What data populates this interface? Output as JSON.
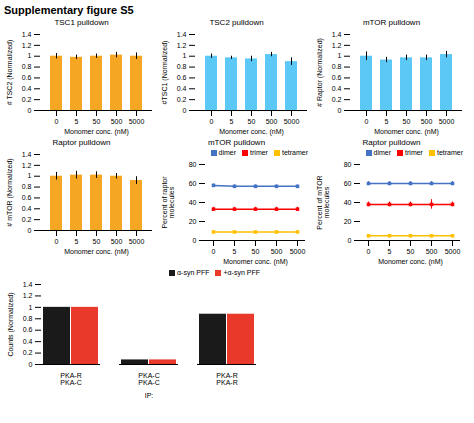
{
  "title": "Supplementary figure S5",
  "chart_data": [
    {
      "type": "bar",
      "title": "TSC1 pulldown",
      "xlabel": "Monomer conc. (nM)",
      "ylabel": "# TSC2 (Normalized)",
      "categories": [
        "0",
        "5",
        "50",
        "500",
        "5000"
      ],
      "values": [
        1.0,
        0.98,
        1.0,
        1.02,
        1.0
      ],
      "errors": [
        0.05,
        0.04,
        0.04,
        0.05,
        0.06
      ],
      "color": "#F5A623",
      "ylim": [
        0,
        1.4
      ],
      "yticks": [
        0,
        0.2,
        0.4,
        0.6,
        0.8,
        1,
        1.2,
        1.4
      ],
      "grid": false
    },
    {
      "type": "bar",
      "title": "TSC2 pulldown",
      "xlabel": "Monomer conc. (nM)",
      "ylabel": "#TSC1 (Normalized)",
      "categories": [
        "0",
        "5",
        "50",
        "500",
        "5000"
      ],
      "values": [
        1.0,
        0.97,
        0.95,
        1.03,
        0.9
      ],
      "errors": [
        0.04,
        0.03,
        0.05,
        0.04,
        0.07
      ],
      "color": "#5BC8F5",
      "ylim": [
        0,
        1.4
      ],
      "yticks": [
        0,
        0.2,
        0.4,
        0.6,
        0.8,
        1,
        1.2,
        1.4
      ],
      "grid": false
    },
    {
      "type": "bar",
      "title": "mTOR pulldown",
      "xlabel": "Monomer conc. (nM)",
      "ylabel": "# Raptor (Normalized)",
      "categories": [
        "0",
        "5",
        "50",
        "500",
        "5000"
      ],
      "values": [
        1.0,
        0.93,
        0.97,
        0.97,
        1.03
      ],
      "errors": [
        0.08,
        0.05,
        0.05,
        0.05,
        0.06
      ],
      "color": "#5BC8F5",
      "ylim": [
        0,
        1.4
      ],
      "yticks": [
        0,
        0.2,
        0.4,
        0.6,
        0.8,
        1,
        1.2,
        1.4
      ],
      "grid": false
    },
    {
      "type": "bar",
      "title": "Raptor pulldown",
      "xlabel": "Monomer conc. (nM)",
      "ylabel": "# mTOR (Normalized)",
      "categories": [
        "0",
        "5",
        "50",
        "500",
        "5000"
      ],
      "values": [
        1.0,
        1.02,
        1.02,
        1.0,
        0.92
      ],
      "errors": [
        0.07,
        0.07,
        0.06,
        0.05,
        0.07
      ],
      "color": "#F5A623",
      "ylim": [
        0,
        1.4
      ],
      "yticks": [
        0,
        0.2,
        0.4,
        0.6,
        0.8,
        1,
        1.2,
        1.4
      ],
      "grid": false
    },
    {
      "type": "line",
      "title": "mTOR pulldown",
      "xlabel": "Monomer conc. (nM)",
      "ylabel": "Percent of raptor\nmolecules",
      "categories": [
        "0",
        "5",
        "50",
        "500",
        "5000"
      ],
      "series": [
        {
          "name": "dimer",
          "color": "#4472C4",
          "marker": "square",
          "values": [
            58,
            57,
            57,
            57,
            57
          ],
          "errors": [
            1.5,
            1.5,
            1.5,
            1.5,
            1.5
          ]
        },
        {
          "name": "trimer",
          "color": "#FF0000",
          "marker": "square",
          "values": [
            33,
            33,
            33,
            33,
            33
          ],
          "errors": [
            2.0,
            2.0,
            2.0,
            2.0,
            2.0
          ]
        },
        {
          "name": "tetramer",
          "color": "#FFC000",
          "marker": "square",
          "values": [
            9,
            9,
            9,
            9,
            9
          ],
          "errors": [
            0.5,
            0.5,
            0.5,
            0.5,
            0.5
          ]
        }
      ],
      "ylim": [
        0,
        80
      ],
      "yticks": [
        0,
        20,
        40,
        60,
        80
      ],
      "grid": false,
      "legend": "top-right"
    },
    {
      "type": "line",
      "title": "Raptor pulldown",
      "xlabel": "Monomer conc. (nM)",
      "ylabel": "Percent of mTOR\nmolecules",
      "categories": [
        "0",
        "5",
        "50",
        "500",
        "5000"
      ],
      "series": [
        {
          "name": "dimer",
          "color": "#4472C4",
          "marker": "square",
          "values": [
            60,
            60,
            60,
            60,
            60
          ],
          "errors": [
            2.0,
            2.0,
            2.0,
            2.0,
            2.0
          ]
        },
        {
          "name": "trimer",
          "color": "#FF0000",
          "marker": "square",
          "values": [
            38,
            38,
            38,
            38,
            38
          ],
          "errors": [
            2.5,
            2.5,
            2.5,
            5.0,
            2.5
          ]
        },
        {
          "name": "tetramer",
          "color": "#FFC000",
          "marker": "square",
          "values": [
            5,
            5,
            5,
            5,
            5
          ],
          "errors": [
            0.5,
            0.5,
            0.5,
            0.5,
            0.5
          ]
        }
      ],
      "ylim": [
        0,
        80
      ],
      "yticks": [
        0,
        20,
        40,
        60,
        80
      ],
      "grid": false,
      "legend": "top-right"
    },
    {
      "type": "bar",
      "xlabel": "IP:",
      "ylabel": "Counts (Normalized)",
      "categories": [
        "PKA-R\nPKA-C",
        "PKA-C\nPKA-C",
        "PKA-R\nPKA-R"
      ],
      "series": [
        {
          "name": "α-syn PFF",
          "color": "#1a1a1a",
          "values": [
            1.0,
            0.08,
            0.88
          ]
        },
        {
          "name": "+α-syn PFF",
          "color": "#E8392A",
          "values": [
            1.0,
            0.08,
            0.88
          ]
        }
      ],
      "ylim": [
        0,
        1.4
      ],
      "yticks": [
        0,
        0.2,
        0.4,
        0.6,
        0.8,
        1,
        1.2,
        1.4
      ],
      "grid": false,
      "legend": "top-right"
    }
  ]
}
